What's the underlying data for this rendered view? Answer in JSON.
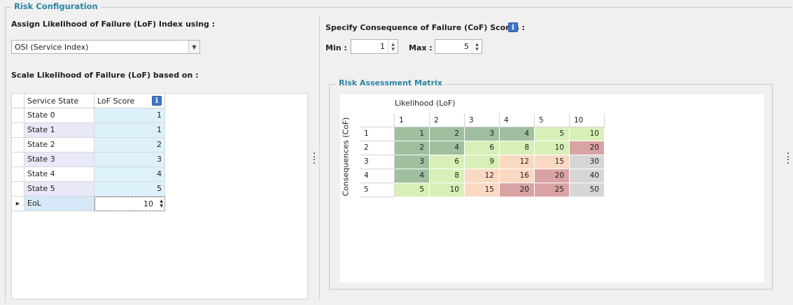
{
  "group": {
    "title": "Risk Configuration"
  },
  "lof": {
    "assign_label": "Assign Likelihood of Failure (LoF) Index using :",
    "selected": "OSI (Service Index)",
    "scale_label": "Scale Likelihood of Failure (LoF) based on :",
    "table": {
      "headers": [
        "Service State",
        "LoF Score"
      ],
      "rows": [
        {
          "state": "State 0",
          "score": "1"
        },
        {
          "state": "State 1",
          "score": "1"
        },
        {
          "state": "State 2",
          "score": "2"
        },
        {
          "state": "State 3",
          "score": "3"
        },
        {
          "state": "State 4",
          "score": "4"
        },
        {
          "state": "State 5",
          "score": "5"
        },
        {
          "state": "EoL",
          "score": "10"
        }
      ]
    }
  },
  "cof": {
    "label": "Specify Consequence of Failure (CoF) Scores :",
    "min_label": "Min :",
    "min_value": "1",
    "max_label": "Max :",
    "max_value": "5"
  },
  "matrix": {
    "title": "Risk Assessment Matrix",
    "x_label": "Likelihood (LoF)",
    "y_label": "Consequences (CoF)",
    "cols": [
      "1",
      "2",
      "3",
      "4",
      "5",
      "10"
    ],
    "rows": [
      "1",
      "2",
      "3",
      "4",
      "5"
    ],
    "values": [
      [
        "1",
        "2",
        "3",
        "4",
        "5",
        "10"
      ],
      [
        "2",
        "4",
        "6",
        "8",
        "10",
        "20"
      ],
      [
        "3",
        "6",
        "9",
        "12",
        "15",
        "30"
      ],
      [
        "4",
        "8",
        "12",
        "16",
        "20",
        "40"
      ],
      [
        "5",
        "10",
        "15",
        "20",
        "25",
        "50"
      ]
    ],
    "colors": {
      "dark_green": "#9fbf9f",
      "light_green": "#d9efb8",
      "peach": "#fad9c2",
      "red": "#d9a3a3",
      "gray": "#d6d6d6"
    }
  },
  "icons": {
    "info": "i"
  }
}
